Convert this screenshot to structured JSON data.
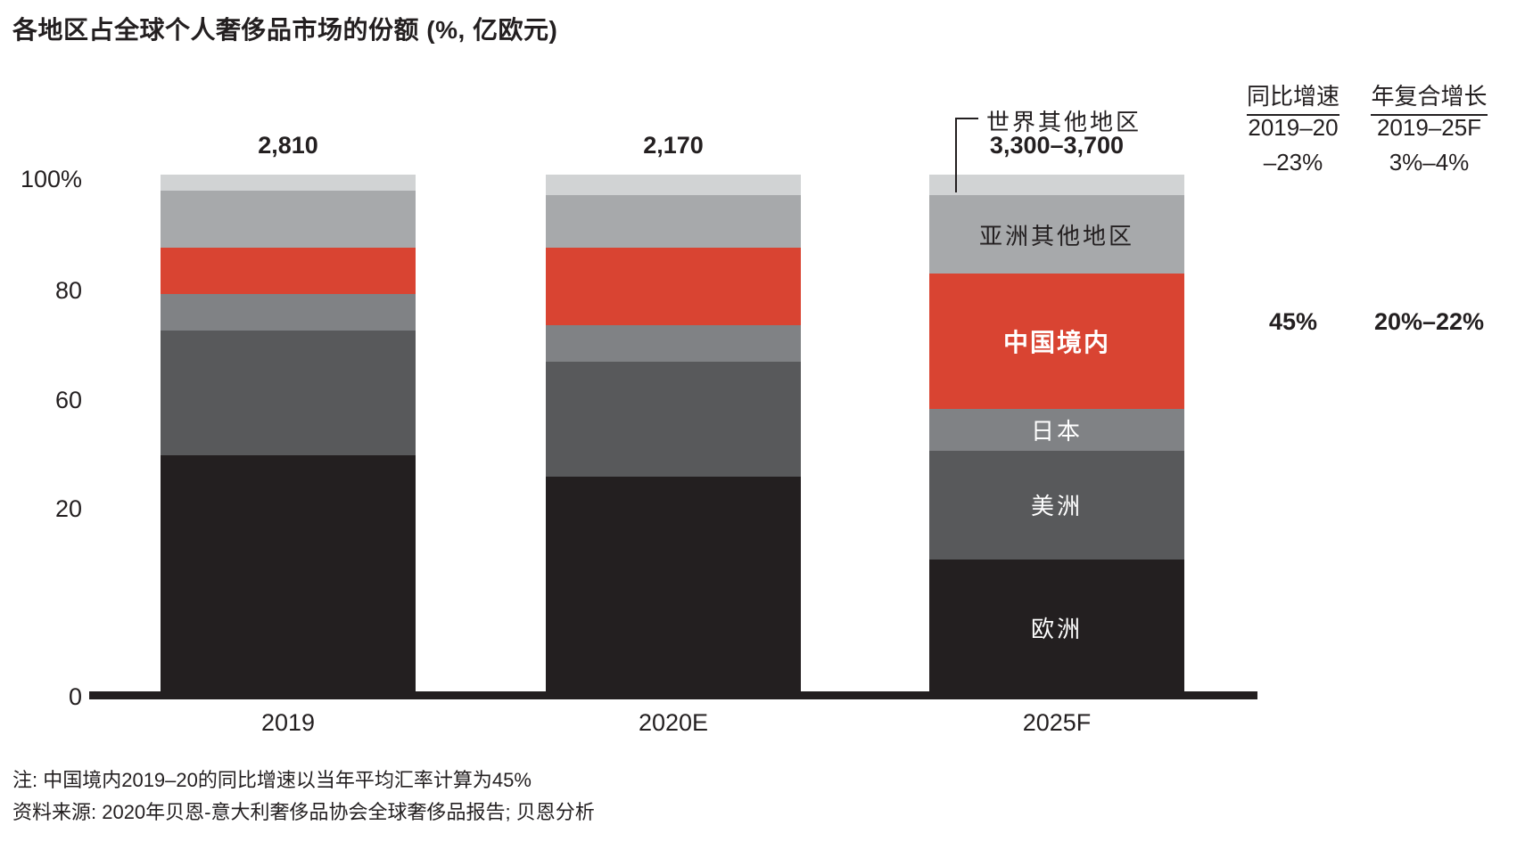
{
  "title": "各地区占全球个人奢侈品市场的份额 (%, 亿欧元)",
  "chart_data": {
    "type": "bar",
    "stacked": true,
    "unit": "percent of total; totals in 亿欧元",
    "categories": [
      "2019",
      "2020E",
      "2025F"
    ],
    "totals": [
      "2,810",
      "2,170",
      "3,300–3,700"
    ],
    "series": [
      {
        "name": "欧洲",
        "color": "#231f20",
        "text_color": "#ffffff",
        "bold": false,
        "label_in_bar": true,
        "values": [
          46,
          42,
          26
        ]
      },
      {
        "name": "美洲",
        "color": "#58595b",
        "text_color": "#ffffff",
        "bold": false,
        "label_in_bar": true,
        "values": [
          24,
          22,
          21
        ]
      },
      {
        "name": "日本",
        "color": "#808285",
        "text_color": "#ffffff",
        "bold": false,
        "label_in_bar": true,
        "values": [
          7,
          7,
          8
        ]
      },
      {
        "name": "中国境内",
        "color": "#d94432",
        "text_color": "#ffffff",
        "bold": true,
        "label_in_bar": true,
        "values": [
          9,
          15,
          26
        ]
      },
      {
        "name": "亚洲其他地区",
        "color": "#a7a9ab",
        "text_color": "#231f20",
        "bold": false,
        "label_in_bar": true,
        "values": [
          11,
          10,
          15
        ]
      },
      {
        "name": "世界其他地区",
        "color": "#d1d3d4",
        "text_color": null,
        "bold": false,
        "label_in_bar": false,
        "values": [
          3,
          4,
          4
        ]
      }
    ],
    "label_bar_index": 2,
    "y_axis": {
      "labels": [
        "100%",
        "80",
        "60",
        "20",
        "0"
      ],
      "range": [
        0,
        100
      ],
      "grid": false
    },
    "legend_position": "inside-last-bar"
  },
  "callout": {
    "label": "世界其他地区"
  },
  "growth_table": {
    "columns": [
      {
        "header": "同比增速",
        "period": "2019–20",
        "market": "–23%",
        "china": "45%"
      },
      {
        "header": "年复合增长",
        "period": "2019–25F",
        "market": "3%–4%",
        "china": "20%–22%"
      }
    ]
  },
  "notes": [
    "注: 中国境内2019–20的同比增速以当年平均汇率计算为45%",
    "资料来源: 2020年贝恩-意大利奢侈品协会全球奢侈品报告; 贝恩分析"
  ],
  "colors": {
    "axis": "#231f20",
    "europe": "#231f20",
    "americas": "#58595b",
    "japan": "#808285",
    "china_red": "#d94432",
    "rest_of_asia": "#a7a9ab",
    "rest_of_world": "#d1d3d4"
  }
}
